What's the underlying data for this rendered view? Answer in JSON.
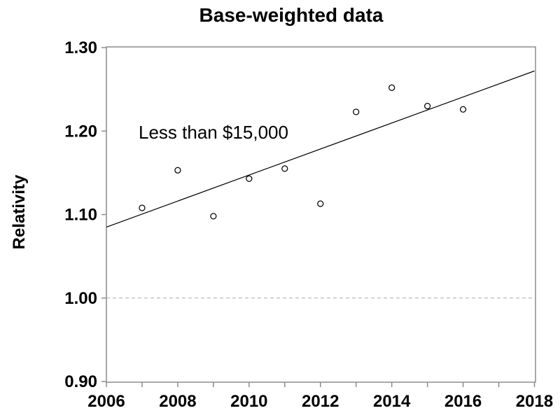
{
  "title": "Base-weighted data",
  "y_axis_label": "Relativity",
  "annotation": "Less than $15,000",
  "colors": {
    "background": "#ffffff",
    "frame": "#8c8c8c",
    "tick": "#8c8c8c",
    "text": "#000000",
    "trend_line": "#000000",
    "reference_line": "#aaaaaa",
    "marker_stroke": "#000000",
    "marker_fill": "#ffffff"
  },
  "chart_data": {
    "type": "scatter",
    "title": "Base-weighted data",
    "xlabel": "",
    "ylabel": "Relativity",
    "annotation": "Less than $15,000",
    "x": [
      2007,
      2008,
      2009,
      2010,
      2011,
      2012,
      2013,
      2014,
      2015,
      2016
    ],
    "y": [
      1.108,
      1.153,
      1.098,
      1.143,
      1.155,
      1.113,
      1.223,
      1.252,
      1.23,
      1.226
    ],
    "trendline": {
      "x": [
        2006,
        2018
      ],
      "y": [
        1.085,
        1.272
      ]
    },
    "reference_line_y": 1.0,
    "xlim": [
      2006,
      2018
    ],
    "ylim": [
      0.9,
      1.3
    ],
    "xticks_labeled": [
      2006,
      2008,
      2010,
      2012,
      2014,
      2016,
      2018
    ],
    "xticks_all": [
      2006,
      2007,
      2008,
      2009,
      2010,
      2011,
      2012,
      2013,
      2014,
      2015,
      2016,
      2017,
      2018
    ],
    "yticks": [
      0.9,
      1.0,
      1.1,
      1.2,
      1.3
    ],
    "grid": false,
    "legend": "none",
    "marker": "open-circle"
  }
}
